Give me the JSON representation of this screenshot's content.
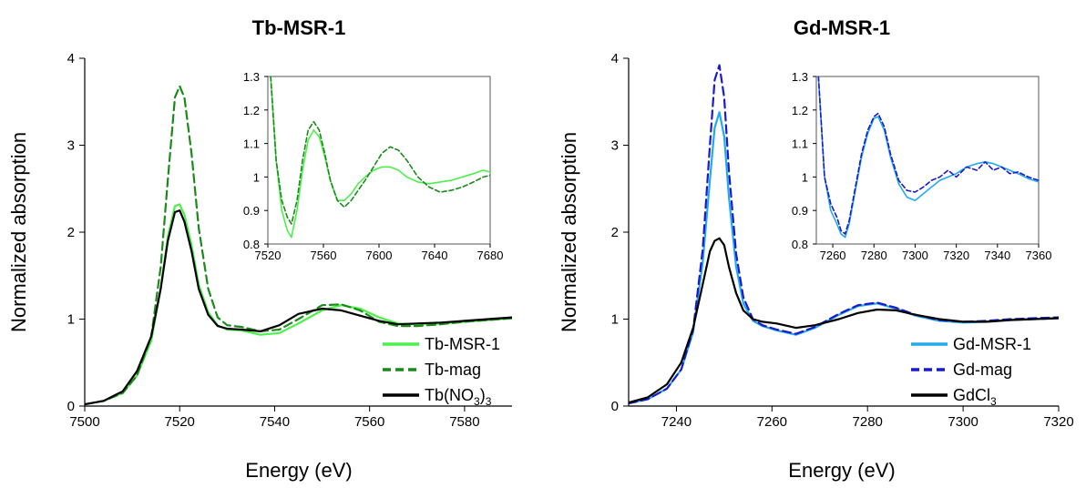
{
  "chart_data": [
    {
      "type": "line",
      "title": "Tb-MSR-1",
      "xlabel": "Energy (eV)",
      "ylabel": "Normalized absorption",
      "xlim": [
        7500,
        7590
      ],
      "ylim": [
        0,
        4
      ],
      "xticks": [
        7500,
        7520,
        7540,
        7560,
        7580
      ],
      "xtick_labels": [
        "7500",
        "7520",
        "7540",
        "7560",
        "7580"
      ],
      "yticks": [
        0,
        1,
        2,
        3,
        4
      ],
      "ytick_labels": [
        "0",
        "1",
        "2",
        "3",
        "4"
      ],
      "legend_position": "bottom-right",
      "series": [
        {
          "name": "Tb-MSR-1",
          "color": "#4cf04c",
          "style": "solid",
          "x": [
            7500,
            7504,
            7508,
            7511,
            7514,
            7516,
            7517.5,
            7519,
            7520,
            7521,
            7522.5,
            7524,
            7526,
            7528,
            7530,
            7533,
            7537,
            7541,
            7545,
            7550,
            7554,
            7558,
            7562,
            7566,
            7570,
            7575,
            7580,
            7585,
            7590
          ],
          "y": [
            0.02,
            0.06,
            0.15,
            0.35,
            0.75,
            1.35,
            1.95,
            2.3,
            2.32,
            2.2,
            1.85,
            1.4,
            1.08,
            0.93,
            0.88,
            0.87,
            0.82,
            0.84,
            0.95,
            1.1,
            1.16,
            1.12,
            1.02,
            0.95,
            0.94,
            0.95,
            0.97,
            0.99,
            1.01
          ]
        },
        {
          "name": "Tb-mag",
          "color": "#1a8a1a",
          "style": "dashed",
          "x": [
            7500,
            7504,
            7508,
            7511,
            7514,
            7516,
            7517.5,
            7519,
            7520,
            7521,
            7522.5,
            7524,
            7526,
            7528,
            7530,
            7533,
            7537,
            7541,
            7545,
            7550,
            7554,
            7558,
            7562,
            7566,
            7570,
            7575,
            7580,
            7585,
            7590
          ],
          "y": [
            0.02,
            0.06,
            0.15,
            0.35,
            0.8,
            1.6,
            2.6,
            3.55,
            3.68,
            3.55,
            2.9,
            2.05,
            1.35,
            1.02,
            0.93,
            0.91,
            0.86,
            0.88,
            1.0,
            1.16,
            1.17,
            1.1,
            0.97,
            0.92,
            0.92,
            0.94,
            0.97,
            0.99,
            1.01
          ]
        },
        {
          "name": "Tb(NO3)3",
          "color": "#000000",
          "style": "solid",
          "x": [
            7500,
            7504,
            7508,
            7511,
            7514,
            7516,
            7517.5,
            7519,
            7520,
            7521,
            7522.5,
            7524,
            7526,
            7528,
            7530,
            7533,
            7537,
            7541,
            7545,
            7550,
            7554,
            7558,
            7562,
            7566,
            7570,
            7575,
            7580,
            7585,
            7590
          ],
          "y": [
            0.02,
            0.06,
            0.17,
            0.4,
            0.8,
            1.35,
            1.9,
            2.23,
            2.25,
            2.12,
            1.78,
            1.35,
            1.05,
            0.92,
            0.89,
            0.88,
            0.86,
            0.93,
            1.06,
            1.12,
            1.1,
            1.04,
            0.98,
            0.94,
            0.95,
            0.96,
            0.98,
            1.0,
            1.02
          ]
        }
      ],
      "legend_labels": [
        {
          "main": "Tb-MSR-1",
          "sub1": "",
          "mid": "",
          "sub2": ""
        },
        {
          "main": "Tb-mag",
          "sub1": "",
          "mid": "",
          "sub2": ""
        },
        {
          "main": "Tb(NO",
          "sub1": "3",
          "mid": ")",
          "sub2": "3"
        }
      ],
      "inset": {
        "xlim": [
          7520,
          7680
        ],
        "ylim": [
          0.8,
          1.3
        ],
        "xticks": [
          7520,
          7560,
          7600,
          7640,
          7680
        ],
        "xtick_labels": [
          "7520",
          "7560",
          "7600",
          "7640",
          "7680"
        ],
        "yticks": [
          0.8,
          0.9,
          1.0,
          1.1,
          1.2,
          1.3
        ],
        "ytick_labels": [
          "0.8",
          "0.9",
          "1",
          "1.1",
          "1.2",
          "1.3"
        ],
        "series": [
          {
            "name": "Tb-MSR-1",
            "color": "#4cf04c",
            "style": "solid",
            "x": [
              7522,
              7526,
              7530,
              7534,
              7537,
              7541,
              7545,
              7549,
              7553,
              7557,
              7561,
              7565,
              7570,
              7575,
              7580,
              7585,
              7590,
              7596,
              7602,
              7608,
              7614,
              7620,
              7628,
              7636,
              7644,
              7652,
              7660,
              7668,
              7675,
              7680
            ],
            "y": [
              1.3,
              1.05,
              0.9,
              0.84,
              0.82,
              0.9,
              1.02,
              1.11,
              1.14,
              1.12,
              1.06,
              0.99,
              0.93,
              0.93,
              0.95,
              0.98,
              1.0,
              1.02,
              1.03,
              1.03,
              1.02,
              1.0,
              0.985,
              0.98,
              0.985,
              0.99,
              1.0,
              1.01,
              1.02,
              1.015
            ]
          },
          {
            "name": "Tb-mag",
            "color": "#1a8a1a",
            "style": "dashed",
            "x": [
              7522,
              7526,
              7530,
              7534,
              7537,
              7541,
              7545,
              7549,
              7553,
              7557,
              7561,
              7565,
              7570,
              7575,
              7580,
              7585,
              7590,
              7596,
              7602,
              7608,
              7614,
              7620,
              7628,
              7636,
              7644,
              7652,
              7660,
              7668,
              7675,
              7680
            ],
            "y": [
              1.3,
              1.05,
              0.93,
              0.88,
              0.86,
              0.93,
              1.05,
              1.14,
              1.165,
              1.14,
              1.07,
              0.99,
              0.93,
              0.91,
              0.93,
              0.96,
              0.99,
              1.03,
              1.07,
              1.09,
              1.08,
              1.05,
              1.0,
              0.97,
              0.955,
              0.96,
              0.97,
              0.985,
              1.0,
              1.005
            ]
          }
        ]
      }
    },
    {
      "type": "line",
      "title": "Gd-MSR-1",
      "xlabel": "Energy (eV)",
      "ylabel": "Normalized absorption",
      "xlim": [
        7230,
        7320
      ],
      "ylim": [
        0,
        4
      ],
      "xticks": [
        7240,
        7260,
        7280,
        7300,
        7320
      ],
      "xtick_labels": [
        "7240",
        "7260",
        "7280",
        "7300",
        "7320"
      ],
      "yticks": [
        0,
        1,
        2,
        3,
        4
      ],
      "ytick_labels": [
        "0",
        "1",
        "2",
        "3",
        "4"
      ],
      "legend_position": "bottom-right",
      "series": [
        {
          "name": "Gd-MSR-1",
          "color": "#22aaee",
          "style": "solid",
          "x": [
            7230,
            7234,
            7238,
            7241,
            7243.5,
            7245.5,
            7247,
            7248,
            7249,
            7250,
            7251,
            7252.5,
            7254,
            7256,
            7258,
            7261,
            7265,
            7269,
            7274,
            7278,
            7282,
            7286,
            7290,
            7295,
            7300,
            7305,
            7310,
            7315,
            7320
          ],
          "y": [
            0.03,
            0.08,
            0.2,
            0.42,
            0.85,
            1.65,
            2.6,
            3.2,
            3.38,
            3.1,
            2.4,
            1.6,
            1.18,
            0.98,
            0.92,
            0.87,
            0.82,
            0.9,
            1.05,
            1.15,
            1.18,
            1.12,
            1.04,
            0.98,
            0.96,
            0.97,
            0.99,
            1.0,
            1.01
          ]
        },
        {
          "name": "Gd-mag",
          "color": "#1a1acc",
          "style": "dashed",
          "x": [
            7230,
            7234,
            7238,
            7241,
            7243.5,
            7245.5,
            7247,
            7248,
            7249,
            7250,
            7251,
            7252.5,
            7254,
            7256,
            7258,
            7261,
            7265,
            7269,
            7274,
            7278,
            7282,
            7286,
            7290,
            7295,
            7300,
            7305,
            7310,
            7315,
            7320
          ],
          "y": [
            0.03,
            0.08,
            0.2,
            0.42,
            0.88,
            1.8,
            3.0,
            3.75,
            3.92,
            3.55,
            2.7,
            1.75,
            1.25,
            1.0,
            0.93,
            0.88,
            0.83,
            0.91,
            1.06,
            1.16,
            1.19,
            1.13,
            1.05,
            0.99,
            0.97,
            0.98,
            1.0,
            1.01,
            1.02
          ]
        },
        {
          "name": "GdCl3",
          "color": "#000000",
          "style": "solid",
          "x": [
            7230,
            7234,
            7238,
            7241,
            7243.5,
            7245.5,
            7247,
            7248,
            7249,
            7250,
            7251,
            7252.5,
            7254,
            7256,
            7258,
            7261,
            7265,
            7269,
            7274,
            7278,
            7282,
            7286,
            7290,
            7295,
            7300,
            7305,
            7310,
            7315,
            7320
          ],
          "y": [
            0.04,
            0.1,
            0.25,
            0.5,
            0.9,
            1.4,
            1.78,
            1.9,
            1.93,
            1.85,
            1.6,
            1.3,
            1.1,
            1.0,
            0.97,
            0.95,
            0.9,
            0.93,
            1.0,
            1.07,
            1.11,
            1.1,
            1.05,
            1.0,
            0.97,
            0.97,
            0.99,
            1.0,
            1.01
          ]
        }
      ],
      "legend_labels": [
        {
          "main": "Gd-MSR-1",
          "sub1": "",
          "mid": "",
          "sub2": ""
        },
        {
          "main": "Gd-mag",
          "sub1": "",
          "mid": "",
          "sub2": ""
        },
        {
          "main": "GdCl",
          "sub1": "3",
          "mid": "",
          "sub2": ""
        }
      ],
      "inset": {
        "xlim": [
          7252,
          7360
        ],
        "ylim": [
          0.8,
          1.3
        ],
        "xticks": [
          7260,
          7280,
          7300,
          7320,
          7340,
          7360
        ],
        "xtick_labels": [
          "7260",
          "7280",
          "7300",
          "7320",
          "7340",
          "7360"
        ],
        "yticks": [
          0.8,
          0.9,
          1.0,
          1.1,
          1.2,
          1.3
        ],
        "ytick_labels": [
          "0.8",
          "0.9",
          "1",
          "1.1",
          "1.2",
          "1.3"
        ],
        "series": [
          {
            "name": "Gd-MSR-1",
            "color": "#22aaee",
            "style": "solid",
            "x": [
              7253,
              7256,
              7259,
              7262,
              7264,
              7266,
              7268,
              7271,
              7274,
              7277,
              7280,
              7282,
              7285,
              7288,
              7292,
              7296,
              7300,
              7304,
              7308,
              7312,
              7316,
              7320,
              7325,
              7330,
              7334,
              7338,
              7342,
              7346,
              7350,
              7355,
              7360
            ],
            "y": [
              1.3,
              1.0,
              0.9,
              0.86,
              0.83,
              0.82,
              0.86,
              0.96,
              1.06,
              1.13,
              1.175,
              1.18,
              1.14,
              1.06,
              0.98,
              0.94,
              0.93,
              0.95,
              0.97,
              0.99,
              1.0,
              1.01,
              1.03,
              1.04,
              1.045,
              1.04,
              1.03,
              1.02,
              1.01,
              0.995,
              0.985
            ]
          },
          {
            "name": "Gd-mag",
            "color": "#1a1acc",
            "style": "dashed",
            "x": [
              7253,
              7256,
              7259,
              7262,
              7264,
              7266,
              7268,
              7271,
              7274,
              7277,
              7280,
              7282,
              7285,
              7288,
              7292,
              7296,
              7300,
              7304,
              7308,
              7312,
              7316,
              7320,
              7325,
              7330,
              7334,
              7338,
              7342,
              7346,
              7350,
              7355,
              7360
            ],
            "y": [
              1.3,
              1.0,
              0.92,
              0.88,
              0.84,
              0.83,
              0.87,
              0.97,
              1.07,
              1.14,
              1.18,
              1.19,
              1.15,
              1.07,
              0.99,
              0.96,
              0.955,
              0.97,
              0.99,
              1.0,
              1.02,
              1.0,
              1.03,
              1.02,
              1.045,
              1.02,
              1.03,
              1.01,
              1.015,
              1.0,
              0.99
            ]
          }
        ]
      }
    }
  ]
}
